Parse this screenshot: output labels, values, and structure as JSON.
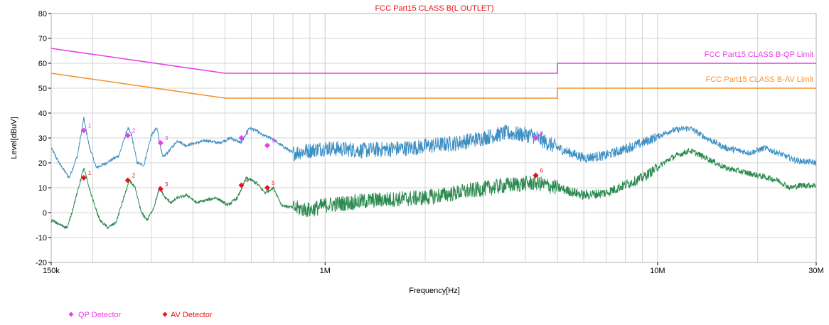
{
  "chart_data": {
    "type": "line",
    "title": "FCC Part15 CLASS B(L OUTLET)",
    "xlabel": "Frequency[Hz]",
    "ylabel": "Level[dBuV]",
    "x_scale": "log",
    "xlim": [
      150000,
      30000000
    ],
    "ylim": [
      -20,
      80
    ],
    "grid": true,
    "x_ticks": [
      {
        "value": 150000,
        "label": "150k"
      },
      {
        "value": 1000000,
        "label": "1M"
      },
      {
        "value": 10000000,
        "label": "10M"
      },
      {
        "value": 30000000,
        "label": "30M"
      }
    ],
    "y_ticks": [
      -20,
      -10,
      0,
      10,
      20,
      30,
      40,
      50,
      60,
      70,
      80
    ],
    "colors": {
      "qp_limit": "#e83ee8",
      "av_limit": "#f5922b",
      "qp_trace": "#3d8fc4",
      "av_trace": "#2b8a4f",
      "qp_marker": "#e83ee8",
      "av_marker": "#e8141b",
      "grid": "#d4d4d4"
    },
    "limits": [
      {
        "label": "FCC Part15 CLASS B-QP Limit",
        "points": [
          [
            150000,
            66
          ],
          [
            500000,
            56
          ],
          [
            5000000,
            56
          ],
          [
            5000000,
            60
          ],
          [
            30000000,
            60
          ]
        ]
      },
      {
        "label": "FCC Part15 CLASS B-AV Limit",
        "points": [
          [
            150000,
            56
          ],
          [
            500000,
            46
          ],
          [
            5000000,
            46
          ],
          [
            5000000,
            50
          ],
          [
            30000000,
            50
          ]
        ]
      }
    ],
    "qp_trace_shape": [
      [
        150000,
        26
      ],
      [
        160000,
        19
      ],
      [
        170000,
        14
      ],
      [
        180000,
        23
      ],
      [
        188000,
        38
      ],
      [
        195000,
        27
      ],
      [
        205000,
        18
      ],
      [
        220000,
        20
      ],
      [
        240000,
        23
      ],
      [
        255000,
        34
      ],
      [
        262000,
        31
      ],
      [
        272000,
        20
      ],
      [
        285000,
        19
      ],
      [
        300000,
        31
      ],
      [
        312000,
        34
      ],
      [
        325000,
        22
      ],
      [
        340000,
        25
      ],
      [
        360000,
        29
      ],
      [
        380000,
        27
      ],
      [
        410000,
        28
      ],
      [
        440000,
        29
      ],
      [
        480000,
        28
      ],
      [
        520000,
        30
      ],
      [
        560000,
        28
      ],
      [
        590000,
        34
      ],
      [
        620000,
        33
      ],
      [
        650000,
        31
      ],
      [
        690000,
        30
      ],
      [
        720000,
        28
      ],
      [
        800000,
        24
      ],
      [
        900000,
        25
      ],
      [
        1000000,
        26
      ],
      [
        1300000,
        25
      ],
      [
        1800000,
        26
      ],
      [
        2500000,
        28
      ],
      [
        3500000,
        32
      ],
      [
        4200000,
        31
      ],
      [
        5000000,
        26
      ],
      [
        6000000,
        22
      ],
      [
        7000000,
        23
      ],
      [
        9000000,
        28
      ],
      [
        11000000,
        33
      ],
      [
        12500000,
        34
      ],
      [
        14000000,
        30
      ],
      [
        16000000,
        26
      ],
      [
        19000000,
        24
      ],
      [
        21000000,
        26
      ],
      [
        23000000,
        24
      ],
      [
        26000000,
        21
      ],
      [
        30000000,
        20
      ]
    ],
    "av_trace_shape": [
      [
        150000,
        -3
      ],
      [
        160000,
        -5
      ],
      [
        168000,
        -6
      ],
      [
        178000,
        6
      ],
      [
        188000,
        18
      ],
      [
        197000,
        8
      ],
      [
        210000,
        -3
      ],
      [
        222000,
        -6
      ],
      [
        235000,
        -4
      ],
      [
        248000,
        6
      ],
      [
        258000,
        13
      ],
      [
        268000,
        10
      ],
      [
        280000,
        0
      ],
      [
        292000,
        -3
      ],
      [
        305000,
        2
      ],
      [
        318000,
        10
      ],
      [
        330000,
        6
      ],
      [
        345000,
        4
      ],
      [
        360000,
        6
      ],
      [
        385000,
        7
      ],
      [
        410000,
        4
      ],
      [
        440000,
        5
      ],
      [
        470000,
        6
      ],
      [
        510000,
        3
      ],
      [
        545000,
        6
      ],
      [
        580000,
        14
      ],
      [
        620000,
        12
      ],
      [
        660000,
        8
      ],
      [
        700000,
        10
      ],
      [
        740000,
        3
      ],
      [
        800000,
        2
      ],
      [
        900000,
        1
      ],
      [
        1000000,
        3
      ],
      [
        1400000,
        5
      ],
      [
        2000000,
        6
      ],
      [
        2800000,
        9
      ],
      [
        3500000,
        11
      ],
      [
        4300000,
        12
      ],
      [
        5000000,
        10
      ],
      [
        6000000,
        7
      ],
      [
        7000000,
        8
      ],
      [
        9000000,
        14
      ],
      [
        11000000,
        22
      ],
      [
        12500000,
        25
      ],
      [
        14000000,
        22
      ],
      [
        16000000,
        18
      ],
      [
        20000000,
        15
      ],
      [
        23000000,
        13
      ],
      [
        25000000,
        10
      ],
      [
        27000000,
        11
      ],
      [
        30000000,
        11
      ]
    ],
    "qp_points": [
      {
        "label": "1",
        "freq": 188000,
        "level": 33
      },
      {
        "label": "2",
        "freq": 255000,
        "level": 31
      },
      {
        "label": "3",
        "freq": 320000,
        "level": 28
      },
      {
        "label": "4",
        "freq": 560000,
        "level": 30
      },
      {
        "label": "5",
        "freq": 670000,
        "level": 27
      },
      {
        "label": "6",
        "freq": 4300000,
        "level": 30
      }
    ],
    "av_points": [
      {
        "label": "1",
        "freq": 188000,
        "level": 14
      },
      {
        "label": "2",
        "freq": 255000,
        "level": 13
      },
      {
        "label": "3",
        "freq": 320000,
        "level": 9.5
      },
      {
        "label": "4",
        "freq": 560000,
        "level": 11
      },
      {
        "label": "5",
        "freq": 670000,
        "level": 10
      },
      {
        "label": "6",
        "freq": 4300000,
        "level": 15
      }
    ],
    "legend": [
      {
        "label": "QP Detector"
      },
      {
        "label": "AV Detector"
      }
    ]
  }
}
